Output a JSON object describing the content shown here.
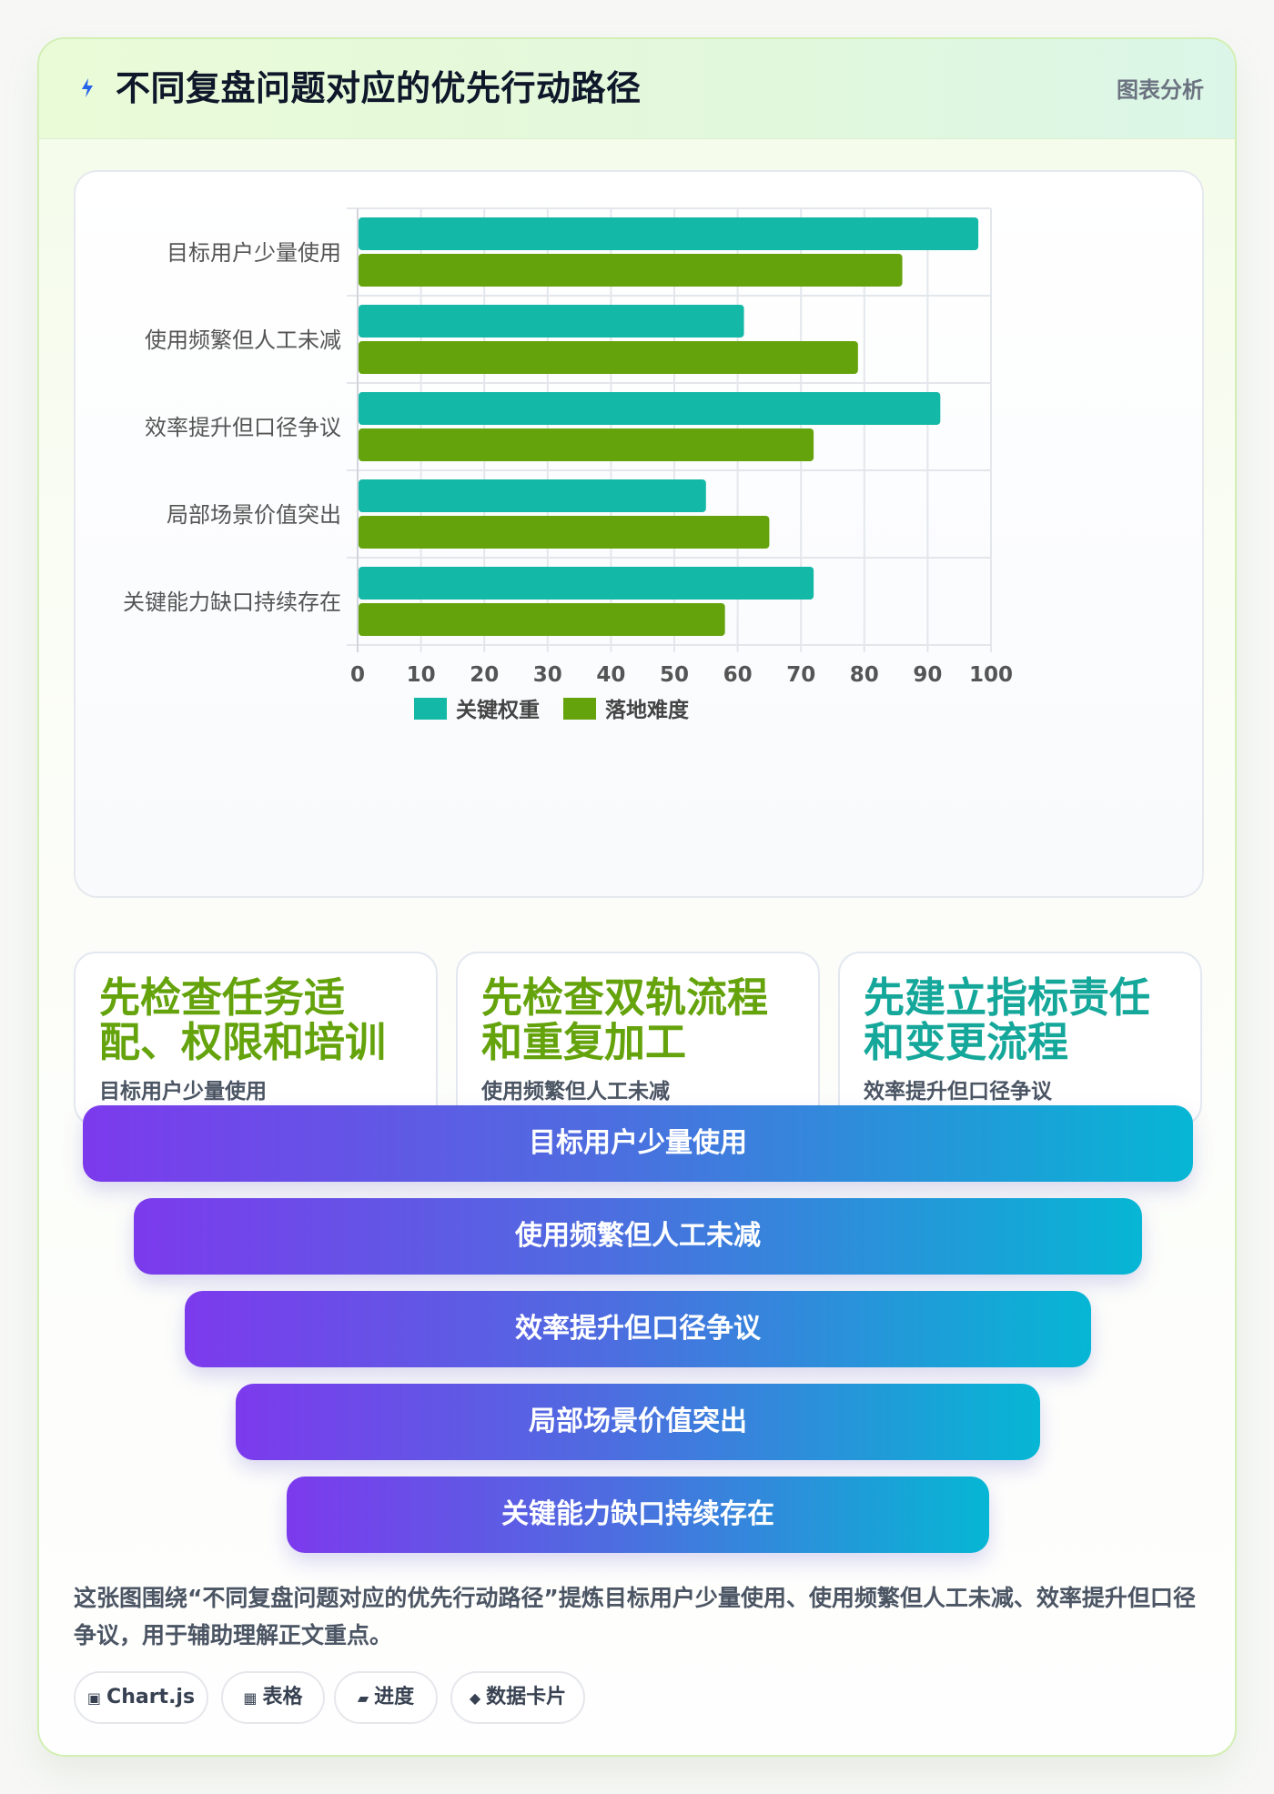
{
  "header": {
    "title": "不同复盘问题对应的优先行动路径",
    "tag": "图表分析",
    "icon": "lightning-bolt-icon"
  },
  "chart_data": {
    "type": "bar",
    "orientation": "horizontal",
    "categories": [
      "目标用户少量使用",
      "使用频繁但人工未减",
      "效率提升但口径争议",
      "局部场景价值突出",
      "关键能力缺口持续存在"
    ],
    "series": [
      {
        "name": "关键权重",
        "color": "#14b8a6",
        "values": [
          98,
          61,
          92,
          55,
          72
        ]
      },
      {
        "name": "落地难度",
        "color": "#65a30d",
        "values": [
          86,
          79,
          72,
          65,
          58
        ]
      }
    ],
    "xlim": [
      0,
      100
    ],
    "xticks": [
      "0",
      "10",
      "20",
      "30",
      "40",
      "50",
      "60",
      "70",
      "80",
      "90",
      "100"
    ],
    "grid": true,
    "legend": "bottom"
  },
  "summary_cards": [
    {
      "headline": "先检查任务适配、权限和培训",
      "label": "目标用户少量使用",
      "color": "#65a30d"
    },
    {
      "headline": "先检查双轨流程和重复加工",
      "label": "使用频繁但人工未减",
      "color": "#65a30d"
    },
    {
      "headline": "先建立指标责任和变更流程",
      "label": "效率提升但口径争议",
      "color": "#14a79a"
    }
  ],
  "funnel": [
    "目标用户少量使用",
    "使用频繁但人工未减",
    "效率提升但口径争议",
    "局部场景价值突出",
    "关键能力缺口持续存在"
  ],
  "description": "这张图围绕“不同复盘问题对应的优先行动路径”提炼目标用户少量使用、使用频繁但人工未减、效率提升但口径争议，用于辅助理解正文重点。",
  "tags": [
    {
      "icon": "▣",
      "label": "Chart.js"
    },
    {
      "icon": "▦",
      "label": "表格"
    },
    {
      "icon": "▰",
      "label": "进度"
    },
    {
      "icon": "◆",
      "label": "数据卡片"
    }
  ]
}
